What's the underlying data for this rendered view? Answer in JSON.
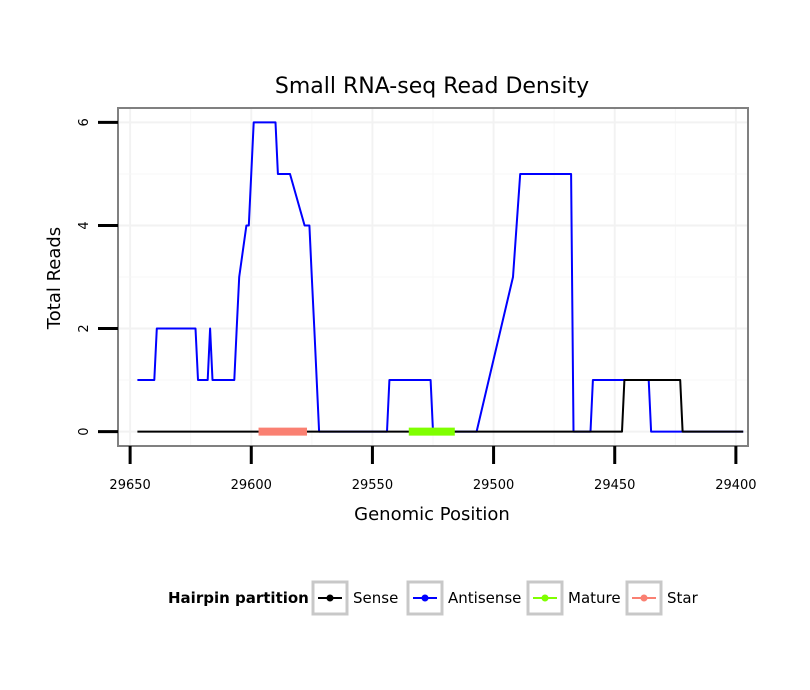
{
  "chart_data": {
    "type": "line",
    "title": "Small RNA-seq Read Density",
    "xlabel": "Genomic Position",
    "ylabel": "Total Reads",
    "xlim": [
      29655,
      29395
    ],
    "ylim": [
      -0.28,
      6.28
    ],
    "x_reversed": true,
    "x_ticks": [
      29650,
      29600,
      29550,
      29500,
      29450,
      29400
    ],
    "y_ticks": [
      0,
      2,
      4,
      6
    ],
    "grid": true,
    "legend": {
      "title": "Hairpin partition",
      "position": "bottom",
      "entries": [
        {
          "label": "Sense",
          "color": "#000000"
        },
        {
          "label": "Antisense",
          "color": "#0000ff"
        },
        {
          "label": "Mature",
          "color": "#7fff00"
        },
        {
          "label": "Star",
          "color": "#fa8072"
        }
      ]
    },
    "series": [
      {
        "name": "Antisense",
        "color": "#0000ff",
        "x": [
          29647,
          29640,
          29639,
          29633,
          29623,
          29622,
          29618,
          29617,
          29616,
          29615,
          29607,
          29606,
          29605,
          29602,
          29601,
          29599,
          29597,
          29596,
          29590,
          29589,
          29587,
          29585,
          29584,
          29578,
          29577,
          29576,
          29575,
          29574,
          29573,
          29572,
          29570,
          29544,
          29543,
          29526,
          29525,
          29509,
          29507,
          29492,
          29489,
          29468,
          29467,
          29465,
          29460,
          29459,
          29457,
          29436,
          29435,
          29423,
          29422,
          29397
        ],
        "y": [
          1,
          1,
          2,
          2,
          2,
          1,
          1,
          2,
          1,
          1,
          1,
          2,
          3,
          4,
          4,
          6,
          6,
          6,
          6,
          5,
          5,
          5,
          5,
          4,
          4,
          4,
          3,
          2,
          1,
          0,
          0,
          0,
          1,
          1,
          0,
          0,
          0,
          3,
          5,
          5,
          0,
          0,
          0,
          1,
          1,
          1,
          0,
          0,
          0,
          0
        ]
      },
      {
        "name": "Sense",
        "color": "#000000",
        "x": [
          29647,
          29447,
          29446,
          29444,
          29423,
          29422,
          29397
        ],
        "y": [
          0,
          0,
          1,
          1,
          1,
          0,
          0
        ]
      }
    ],
    "segments": [
      {
        "name": "Star",
        "color": "#fa8072",
        "x_start": 29597,
        "x_end": 29577,
        "y": 0
      },
      {
        "name": "Mature",
        "color": "#7fff00",
        "x_start": 29535,
        "x_end": 29516,
        "y": 0
      }
    ]
  }
}
